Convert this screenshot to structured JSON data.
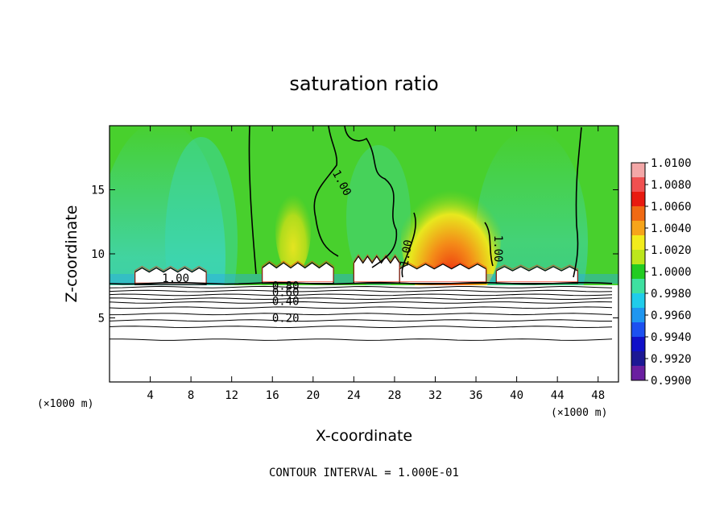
{
  "chart_data": {
    "type": "heatmap",
    "title": "saturation ratio",
    "xlabel": "X-coordinate",
    "ylabel": "Z-coordinate",
    "x_unit_left": "(×1000 m)",
    "x_unit_right": "(×1000 m)",
    "xlim": [
      0,
      50
    ],
    "ylim": [
      0,
      20
    ],
    "x_ticks": [
      4,
      8,
      12,
      16,
      20,
      24,
      28,
      32,
      36,
      40,
      44,
      48
    ],
    "y_ticks": [
      5,
      10,
      15
    ],
    "footer": "CONTOUR INTERVAL = 1.000E-01",
    "colorbar": {
      "labels": [
        "1.0100",
        "1.0080",
        "1.0060",
        "1.0040",
        "1.0020",
        "1.0000",
        "0.9980",
        "0.9960",
        "0.9940",
        "0.9920",
        "0.9900"
      ],
      "colors": [
        "#f3a7a7",
        "#f05050",
        "#e81a10",
        "#f06a14",
        "#f6a41a",
        "#f2ec1c",
        "#bce61c",
        "#22cc22",
        "#3ee0a0",
        "#20ccea",
        "#1e96f0",
        "#1c50f0",
        "#1010c8",
        "#1c1894",
        "#6a1ea0"
      ]
    },
    "contour_labels": [
      {
        "text": "1.00",
        "x": 6.5,
        "z": 7.8
      },
      {
        "text": "1.00",
        "x": 22.5,
        "z": 15.4
      },
      {
        "text": "1.00",
        "x": 29.5,
        "z": 10.0
      },
      {
        "text": "1.00",
        "x": 37.8,
        "z": 10.4
      },
      {
        "text": "0.80",
        "x": 17.3,
        "z": 7.2
      },
      {
        "text": "0.60",
        "x": 17.3,
        "z": 6.7
      },
      {
        "text": "0.40",
        "x": 17.3,
        "z": 6.0
      },
      {
        "text": "0.20",
        "x": 17.3,
        "z": 4.7
      }
    ],
    "isolines_z": [
      7.7,
      7.4,
      7.1,
      6.8,
      6.5,
      6.2,
      5.8,
      5.3,
      4.8,
      4.3,
      3.3
    ],
    "cloud_blobs": [
      {
        "x": [
          2.5,
          9.5
        ],
        "z": [
          7.6,
          8.9
        ]
      },
      {
        "x": [
          15.0,
          22.0
        ],
        "z": [
          7.7,
          9.3
        ]
      },
      {
        "x": [
          24.0,
          28.5
        ],
        "z": [
          7.7,
          9.8
        ]
      },
      {
        "x": [
          28.5,
          37.0
        ],
        "z": [
          7.7,
          9.2
        ]
      },
      {
        "x": [
          38.0,
          46.0
        ],
        "z": [
          7.7,
          9.0
        ]
      }
    ]
  }
}
